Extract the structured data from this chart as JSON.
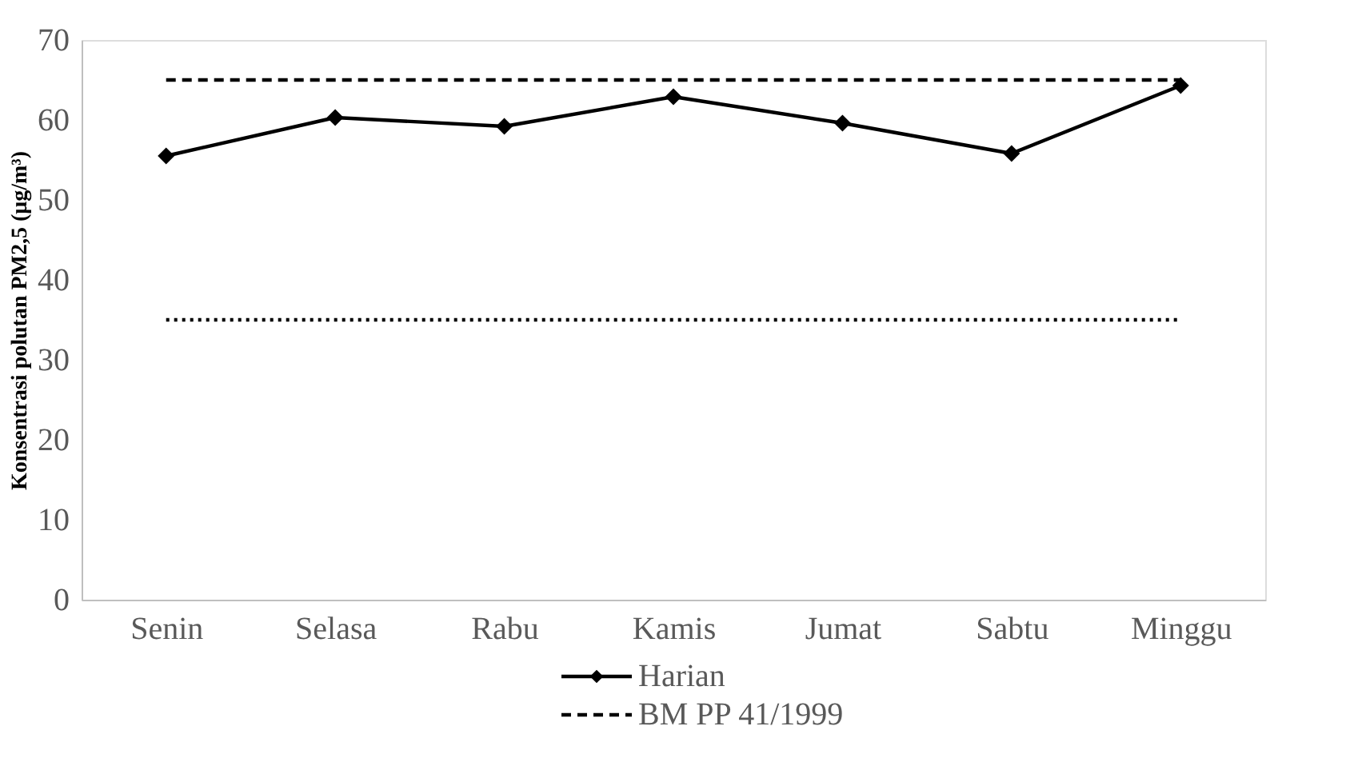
{
  "chart_data": {
    "type": "line",
    "ylabel": "Konsentrasi polutan PM2,5 (μg/m³)",
    "categories": [
      "Senin",
      "Selasa",
      "Rabu",
      "Kamis",
      "Jumat",
      "Sabtu",
      "Minggu"
    ],
    "series": [
      {
        "name": "Harian",
        "color": "#000000",
        "marker": "diamond",
        "line_style": "solid",
        "values": [
          55.5,
          60.3,
          59.2,
          62.9,
          59.6,
          55.8,
          64.3
        ]
      },
      {
        "name": "BM PP 41/1999",
        "color": "#000000",
        "marker": "none",
        "line_style": "dashed",
        "values": [
          65,
          65,
          65,
          65,
          65,
          65,
          65
        ]
      },
      {
        "color": "#000000",
        "marker": "none",
        "line_style": "dotted",
        "values": [
          35,
          35,
          35,
          35,
          35,
          35,
          35
        ]
      }
    ],
    "ylim": [
      0,
      70
    ],
    "yticks": [
      0,
      10,
      20,
      30,
      40,
      50,
      60,
      70
    ],
    "grid": false,
    "legend": "bottom"
  }
}
